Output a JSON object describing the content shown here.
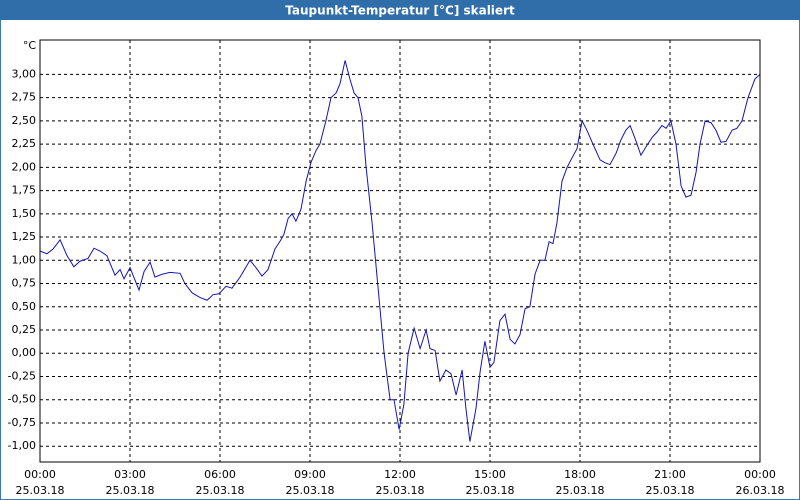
{
  "chart_data": {
    "type": "line",
    "title": "Taupunkt-Temperatur [°C] skaliert",
    "y_label": "°C",
    "xlim": [
      0,
      24
    ],
    "ylim": [
      -1.17,
      3.37
    ],
    "grid": true,
    "xticks": [
      {
        "value": 0,
        "label": [
          "00:00",
          "25.03.18"
        ]
      },
      {
        "value": 3,
        "label": [
          "03:00",
          "25.03.18"
        ]
      },
      {
        "value": 6,
        "label": [
          "06:00",
          "25.03.18"
        ]
      },
      {
        "value": 9,
        "label": [
          "09:00",
          "25.03.18"
        ]
      },
      {
        "value": 12,
        "label": [
          "12:00",
          "25.03.18"
        ]
      },
      {
        "value": 15,
        "label": [
          "15:00",
          "25.03.18"
        ]
      },
      {
        "value": 18,
        "label": [
          "18:00",
          "25.03.18"
        ]
      },
      {
        "value": 21,
        "label": [
          "21:00",
          "25.03.18"
        ]
      },
      {
        "value": 24,
        "label": [
          "00:00",
          "26.03.18"
        ]
      }
    ],
    "yticks": [
      {
        "value": -1,
        "label": "-1,00"
      },
      {
        "value": -0.75,
        "label": "-0,75"
      },
      {
        "value": -0.5,
        "label": "-0,50"
      },
      {
        "value": -0.25,
        "label": "-0,25"
      },
      {
        "value": 0,
        "label": "0,00"
      },
      {
        "value": 0.25,
        "label": "0,25"
      },
      {
        "value": 0.5,
        "label": "0,50"
      },
      {
        "value": 0.75,
        "label": "0,75"
      },
      {
        "value": 1,
        "label": "1,00"
      },
      {
        "value": 1.25,
        "label": "1,25"
      },
      {
        "value": 1.5,
        "label": "1,50"
      },
      {
        "value": 1.75,
        "label": "1,75"
      },
      {
        "value": 2,
        "label": "2,00"
      },
      {
        "value": 2.25,
        "label": "2,25"
      },
      {
        "value": 2.5,
        "label": "2,50"
      },
      {
        "value": 2.75,
        "label": "2,75"
      },
      {
        "value": 3,
        "label": "3,00"
      }
    ],
    "x": [
      0,
      0.23,
      0.43,
      0.67,
      0.9,
      1.13,
      1.33,
      1.6,
      1.8,
      2,
      2.23,
      2.5,
      2.67,
      2.8,
      3,
      3.3,
      3.47,
      3.67,
      3.83,
      4.07,
      4.33,
      4.67,
      4.83,
      5.07,
      5.33,
      5.57,
      5.77,
      5.97,
      6.2,
      6.4,
      6.67,
      7,
      7.2,
      7.4,
      7.6,
      7.83,
      8.03,
      8.13,
      8.27,
      8.4,
      8.53,
      8.7,
      8.87,
      9.03,
      9.2,
      9.33,
      9.53,
      9.7,
      9.87,
      10,
      10.17,
      10.33,
      10.47,
      10.6,
      10.73,
      10.87,
      11.07,
      11.27,
      11.47,
      11.67,
      11.8,
      11.97,
      12.13,
      12.27,
      12.47,
      12.67,
      12.87,
      13,
      13.17,
      13.33,
      13.53,
      13.7,
      13.87,
      14.07,
      14.2,
      14.33,
      14.53,
      14.67,
      14.83,
      15,
      15.13,
      15.33,
      15.5,
      15.67,
      15.83,
      16,
      16.17,
      16.33,
      16.5,
      16.67,
      16.83,
      16.97,
      17.1,
      17.23,
      17.4,
      17.57,
      17.73,
      17.9,
      18.07,
      18.23,
      18.43,
      18.67,
      18.83,
      19,
      19.2,
      19.37,
      19.53,
      19.67,
      19.87,
      20.03,
      20.2,
      20.4,
      20.57,
      20.73,
      20.87,
      21.03,
      21.2,
      21.37,
      21.53,
      21.7,
      21.87,
      22,
      22.17,
      22.37,
      22.53,
      22.7,
      22.87,
      23.07,
      23.23,
      23.4,
      23.6,
      23.83,
      24
    ],
    "series": [
      {
        "color": "#1414b4",
        "values": [
          1.1,
          1.07,
          1.12,
          1.22,
          1.05,
          0.93,
          0.99,
          1.02,
          1.13,
          1.1,
          1.05,
          0.84,
          0.9,
          0.8,
          0.92,
          0.68,
          0.88,
          0.98,
          0.82,
          0.85,
          0.87,
          0.86,
          0.75,
          0.65,
          0.6,
          0.57,
          0.63,
          0.64,
          0.72,
          0.7,
          0.82,
          1.0,
          0.92,
          0.83,
          0.9,
          1.12,
          1.22,
          1.28,
          1.45,
          1.5,
          1.42,
          1.55,
          1.85,
          2.05,
          2.18,
          2.25,
          2.5,
          2.75,
          2.8,
          2.9,
          3.15,
          2.95,
          2.8,
          2.75,
          2.55,
          2.0,
          1.4,
          0.7,
          0.0,
          -0.5,
          -0.5,
          -0.82,
          -0.55,
          0.0,
          0.27,
          0.05,
          0.25,
          0.05,
          0.03,
          -0.3,
          -0.18,
          -0.22,
          -0.45,
          -0.18,
          -0.6,
          -0.95,
          -0.6,
          -0.2,
          0.13,
          -0.15,
          -0.1,
          0.35,
          0.42,
          0.15,
          0.1,
          0.2,
          0.48,
          0.5,
          0.85,
          1.0,
          1.0,
          1.2,
          1.18,
          1.4,
          1.85,
          2.0,
          2.1,
          2.2,
          2.5,
          2.4,
          2.25,
          2.08,
          2.05,
          2.03,
          2.15,
          2.3,
          2.4,
          2.45,
          2.28,
          2.13,
          2.22,
          2.32,
          2.38,
          2.45,
          2.42,
          2.5,
          2.25,
          1.8,
          1.68,
          1.7,
          1.95,
          2.25,
          2.5,
          2.48,
          2.4,
          2.27,
          2.28,
          2.4,
          2.42,
          2.5,
          2.75,
          2.95,
          3.0
        ]
      }
    ]
  }
}
